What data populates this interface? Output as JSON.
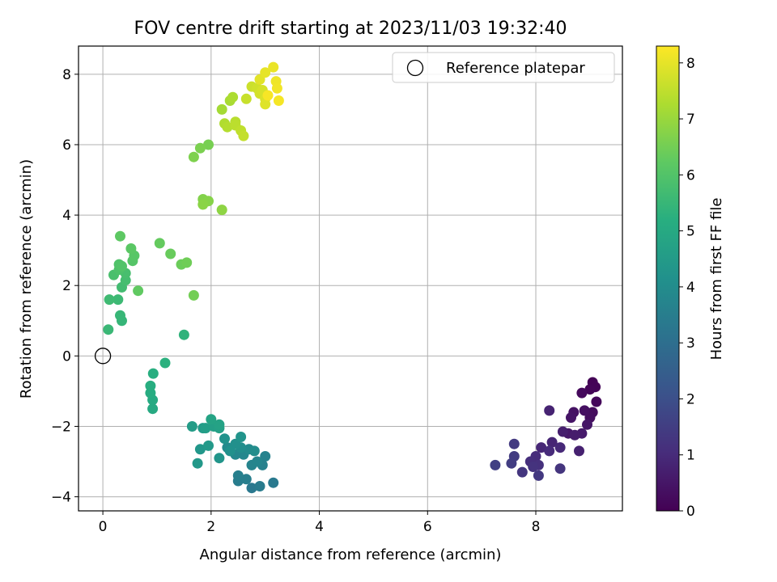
{
  "chart_data": {
    "type": "scatter",
    "title": "FOV centre drift starting at 2023/11/03 19:32:40",
    "xlabel": "Angular distance from reference (arcmin)",
    "ylabel": "Rotation from reference (arcmin)",
    "xlim": [
      -0.45,
      9.6
    ],
    "ylim": [
      -4.4,
      8.8
    ],
    "xticks": [
      0,
      2,
      4,
      6,
      8
    ],
    "yticks": [
      -4,
      -2,
      0,
      2,
      4,
      6,
      8
    ],
    "grid": true,
    "legend": {
      "location": "top-right",
      "entries": [
        "Reference platepar"
      ]
    },
    "reference_point": {
      "x": 0,
      "y": 0
    },
    "colorbar": {
      "label": "Hours from first FF file",
      "colormap": "viridis",
      "range": [
        0,
        8.3
      ],
      "ticks": [
        0,
        1,
        2,
        3,
        4,
        5,
        6,
        7,
        8
      ]
    },
    "series": [
      {
        "points": [
          [
            9.05,
            -0.75,
            0.05
          ],
          [
            9.1,
            -0.88,
            0.08
          ],
          [
            9.0,
            -0.95,
            0.1
          ],
          [
            9.12,
            -1.3,
            0.15
          ],
          [
            8.85,
            -1.05,
            0.2
          ],
          [
            9.05,
            -1.6,
            0.25
          ],
          [
            9.0,
            -1.75,
            0.3
          ],
          [
            8.9,
            -1.55,
            0.35
          ],
          [
            8.7,
            -1.6,
            0.4
          ],
          [
            8.65,
            -1.75,
            0.45
          ],
          [
            8.95,
            -1.95,
            0.5
          ],
          [
            8.6,
            -2.2,
            0.55
          ],
          [
            8.85,
            -2.2,
            0.6
          ],
          [
            8.72,
            -2.25,
            0.65
          ],
          [
            8.5,
            -2.15,
            0.7
          ],
          [
            8.8,
            -2.7,
            0.75
          ],
          [
            8.25,
            -1.55,
            0.8
          ],
          [
            8.3,
            -2.45,
            0.85
          ],
          [
            8.1,
            -2.6,
            0.9
          ],
          [
            8.45,
            -2.6,
            0.95
          ],
          [
            8.25,
            -2.7,
            1.0
          ],
          [
            8.0,
            -2.85,
            1.05
          ],
          [
            7.9,
            -3.0,
            1.1
          ],
          [
            8.05,
            -3.1,
            1.15
          ],
          [
            7.95,
            -3.15,
            1.2
          ],
          [
            8.45,
            -3.2,
            1.25
          ],
          [
            7.75,
            -3.3,
            1.3
          ],
          [
            8.05,
            -3.4,
            1.35
          ],
          [
            7.6,
            -2.5,
            1.4
          ],
          [
            7.6,
            -2.85,
            1.45
          ],
          [
            7.55,
            -3.05,
            1.5
          ],
          [
            7.25,
            -3.1,
            1.55
          ],
          [
            2.75,
            -3.75,
            3.3
          ],
          [
            3.15,
            -3.6,
            3.35
          ],
          [
            2.9,
            -3.7,
            3.4
          ],
          [
            2.5,
            -3.55,
            3.45
          ],
          [
            2.65,
            -3.5,
            3.5
          ],
          [
            2.5,
            -3.4,
            3.55
          ],
          [
            2.95,
            -3.1,
            3.6
          ],
          [
            3.0,
            -2.85,
            3.65
          ],
          [
            2.75,
            -3.1,
            3.7
          ],
          [
            2.85,
            -3.0,
            3.75
          ],
          [
            2.6,
            -2.8,
            3.8
          ],
          [
            2.45,
            -2.8,
            3.85
          ],
          [
            2.3,
            -2.6,
            3.9
          ],
          [
            2.7,
            -2.65,
            3.95
          ],
          [
            2.8,
            -2.7,
            4.0
          ],
          [
            2.55,
            -2.6,
            4.05
          ],
          [
            2.45,
            -2.5,
            4.1
          ],
          [
            2.35,
            -2.7,
            4.15
          ],
          [
            2.25,
            -2.35,
            4.2
          ],
          [
            2.55,
            -2.3,
            4.25
          ],
          [
            2.15,
            -2.9,
            4.3
          ],
          [
            1.8,
            -2.65,
            4.35
          ],
          [
            1.75,
            -3.05,
            4.4
          ],
          [
            1.95,
            -2.55,
            4.45
          ],
          [
            1.85,
            -2.05,
            4.5
          ],
          [
            1.65,
            -2.0,
            4.55
          ],
          [
            1.9,
            -2.05,
            4.6
          ],
          [
            2.05,
            -2.0,
            4.65
          ],
          [
            2.15,
            -2.05,
            4.7
          ],
          [
            2.15,
            -1.95,
            4.75
          ],
          [
            2.0,
            -1.8,
            4.8
          ],
          [
            0.92,
            -1.5,
            5.0
          ],
          [
            0.92,
            -1.25,
            5.05
          ],
          [
            0.88,
            -1.05,
            5.1
          ],
          [
            0.88,
            -0.85,
            5.15
          ],
          [
            0.93,
            -0.5,
            5.2
          ],
          [
            1.15,
            -0.2,
            5.25
          ],
          [
            1.5,
            0.6,
            5.35
          ],
          [
            0.35,
            1.0,
            5.45
          ],
          [
            0.32,
            1.15,
            5.5
          ],
          [
            0.1,
            0.75,
            5.55
          ],
          [
            0.28,
            1.6,
            5.6
          ],
          [
            0.12,
            1.6,
            5.65
          ],
          [
            0.35,
            1.95,
            5.7
          ],
          [
            0.42,
            2.15,
            5.75
          ],
          [
            0.42,
            2.35,
            5.8
          ],
          [
            0.2,
            2.3,
            5.85
          ],
          [
            0.3,
            2.45,
            5.9
          ],
          [
            0.3,
            2.6,
            5.95
          ],
          [
            0.35,
            2.55,
            6.0
          ],
          [
            0.55,
            2.7,
            6.05
          ],
          [
            0.58,
            2.85,
            6.1
          ],
          [
            0.52,
            3.05,
            6.15
          ],
          [
            0.32,
            3.4,
            6.2
          ],
          [
            0.65,
            1.85,
            6.25
          ],
          [
            1.05,
            3.2,
            6.3
          ],
          [
            1.25,
            2.9,
            6.35
          ],
          [
            1.45,
            2.6,
            6.4
          ],
          [
            1.55,
            2.65,
            6.45
          ],
          [
            1.68,
            1.72,
            6.5
          ],
          [
            1.95,
            6.0,
            6.55
          ],
          [
            1.8,
            5.9,
            6.6
          ],
          [
            1.68,
            5.65,
            6.65
          ],
          [
            1.85,
            4.45,
            6.7
          ],
          [
            1.95,
            4.4,
            6.75
          ],
          [
            1.85,
            4.3,
            6.8
          ],
          [
            2.2,
            4.15,
            6.85
          ],
          [
            2.2,
            7.0,
            7.15
          ],
          [
            2.35,
            7.25,
            7.2
          ],
          [
            2.4,
            7.35,
            7.25
          ],
          [
            2.25,
            6.6,
            7.3
          ],
          [
            2.3,
            6.5,
            7.35
          ],
          [
            2.45,
            6.65,
            7.4
          ],
          [
            2.45,
            6.55,
            7.45
          ],
          [
            2.55,
            6.4,
            7.5
          ],
          [
            2.6,
            6.25,
            7.55
          ],
          [
            2.65,
            7.3,
            7.6
          ],
          [
            2.75,
            7.65,
            7.65
          ],
          [
            2.85,
            7.6,
            7.7
          ],
          [
            2.9,
            7.45,
            7.75
          ],
          [
            2.95,
            7.55,
            7.8
          ],
          [
            3.0,
            7.3,
            7.85
          ],
          [
            3.0,
            7.15,
            7.9
          ],
          [
            2.9,
            7.85,
            7.95
          ],
          [
            3.0,
            8.05,
            8.0
          ],
          [
            3.15,
            8.2,
            8.05
          ],
          [
            3.2,
            7.8,
            8.1
          ],
          [
            3.22,
            7.6,
            8.15
          ],
          [
            3.25,
            7.25,
            8.2
          ],
          [
            3.05,
            7.4,
            8.22
          ]
        ]
      }
    ]
  }
}
